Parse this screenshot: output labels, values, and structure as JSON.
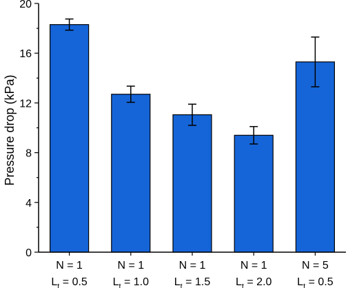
{
  "chart_data": {
    "type": "bar",
    "ylabel": "Pressure drop (kPa)",
    "ylim": [
      0,
      20
    ],
    "yticks": [
      "0",
      "4",
      "8",
      "12",
      "16",
      "20"
    ],
    "categories": [
      {
        "line1": "N = 1",
        "line2_main": "L",
        "line2_sub": "t",
        "line2_rest": " = 0.5"
      },
      {
        "line1": "N = 1",
        "line2_main": "L",
        "line2_sub": "t",
        "line2_rest": " = 1.0"
      },
      {
        "line1": "N = 1",
        "line2_main": "L",
        "line2_sub": "t",
        "line2_rest": " = 1.5"
      },
      {
        "line1": "N = 1",
        "line2_main": "L",
        "line2_sub": "t",
        "line2_rest": " = 2.0"
      },
      {
        "line1": "N = 5",
        "line2_main": "L",
        "line2_sub": "t",
        "line2_rest": " = 0.5"
      }
    ],
    "values": [
      18.3,
      12.7,
      11.05,
      9.4,
      15.3
    ],
    "errors": [
      0.45,
      0.65,
      0.85,
      0.7,
      2.0
    ],
    "bar_color": "#1565d8",
    "bar_edge_color": "#000000",
    "grid": false
  }
}
